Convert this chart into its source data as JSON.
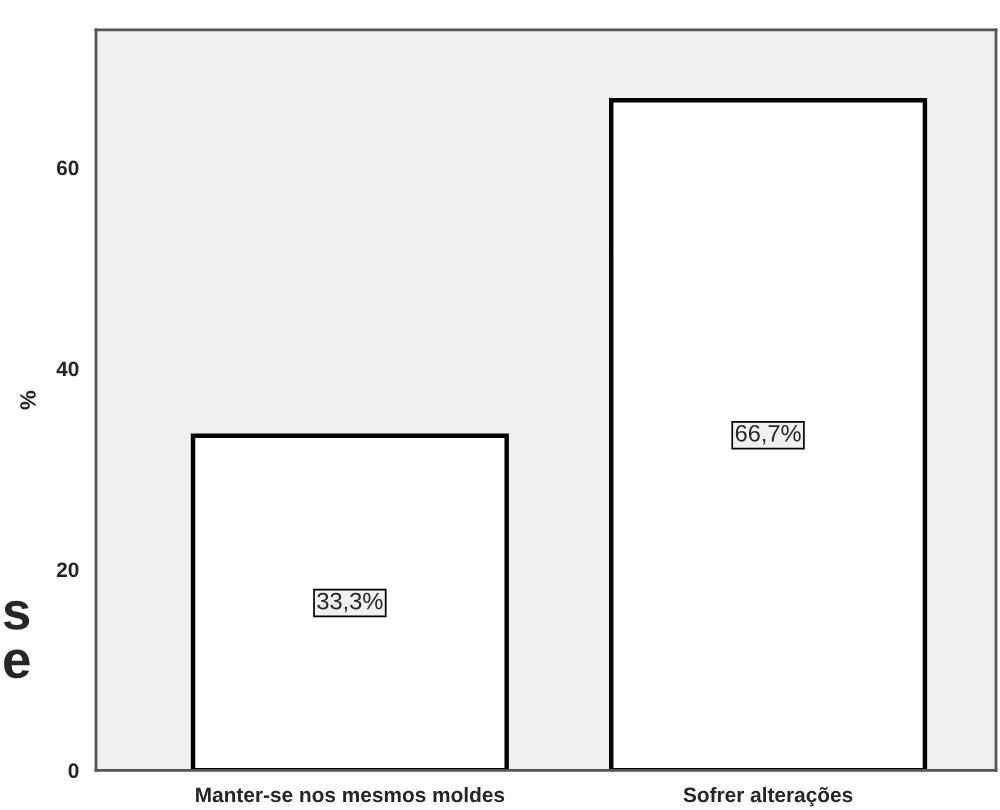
{
  "chart_data": {
    "type": "bar",
    "ylabel": "%",
    "categories": [
      "Manter-se nos mesmos moldes",
      "Sofrer alterações"
    ],
    "values": [
      33.3,
      66.7
    ],
    "value_labels": [
      "33,3%",
      "66,7%"
    ],
    "color": "#ffffff",
    "ylim": [
      0,
      73.7
    ],
    "yticks": [
      0,
      20,
      40,
      60
    ],
    "grid": false,
    "annotations": [
      "s",
      "e"
    ]
  }
}
